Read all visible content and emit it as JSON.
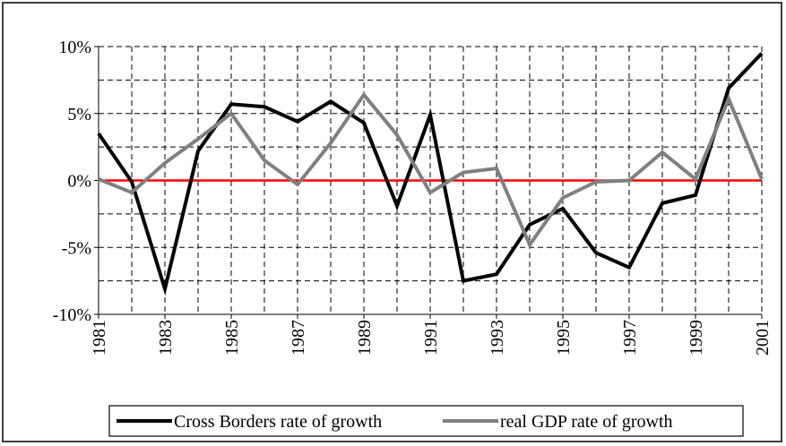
{
  "chart_data": {
    "type": "line",
    "x": [
      1981,
      1982,
      1983,
      1984,
      1985,
      1986,
      1987,
      1988,
      1989,
      1990,
      1991,
      1992,
      1993,
      1994,
      1995,
      1996,
      1997,
      1998,
      1999,
      2000,
      2001
    ],
    "series": [
      {
        "name": "Cross Borders rate of growth",
        "color": "#000000",
        "values": [
          3.5,
          -0.1,
          -8.1,
          2.2,
          5.7,
          5.5,
          4.4,
          5.9,
          4.3,
          -1.9,
          4.9,
          -7.5,
          -7.0,
          -3.3,
          -2.1,
          -5.4,
          -6.5,
          -1.7,
          -1.1,
          6.9,
          9.5
        ]
      },
      {
        "name": "real GDP rate of growth",
        "color": "#808080",
        "values": [
          0.1,
          -0.9,
          1.3,
          3.1,
          5.0,
          1.5,
          -0.3,
          2.8,
          6.4,
          3.4,
          -0.9,
          0.6,
          0.9,
          -4.8,
          -1.3,
          -0.1,
          0,
          2.1,
          0.1,
          6.1,
          0.1
        ]
      }
    ],
    "xlim": [
      1981,
      2001
    ],
    "xticks": [
      1981,
      1983,
      1985,
      1987,
      1989,
      1991,
      1993,
      1995,
      1997,
      1999,
      2001
    ],
    "x_minor_ticks": [
      1982,
      1984,
      1986,
      1988,
      1990,
      1992,
      1994,
      1996,
      1998,
      2000
    ],
    "ylim": [
      -10,
      10
    ],
    "yticks": [
      {
        "value": -10,
        "label": "-10%"
      },
      {
        "value": -5,
        "label": "-5%"
      },
      {
        "value": 0,
        "label": "0%"
      },
      {
        "value": 5,
        "label": "5%"
      },
      {
        "value": 10,
        "label": "10%"
      }
    ],
    "y_minor_ticks": [
      -7.5,
      -2.5,
      2.5,
      7.5
    ],
    "zero_line_color": "#ff0000",
    "grid": true,
    "legend": "bottom"
  }
}
